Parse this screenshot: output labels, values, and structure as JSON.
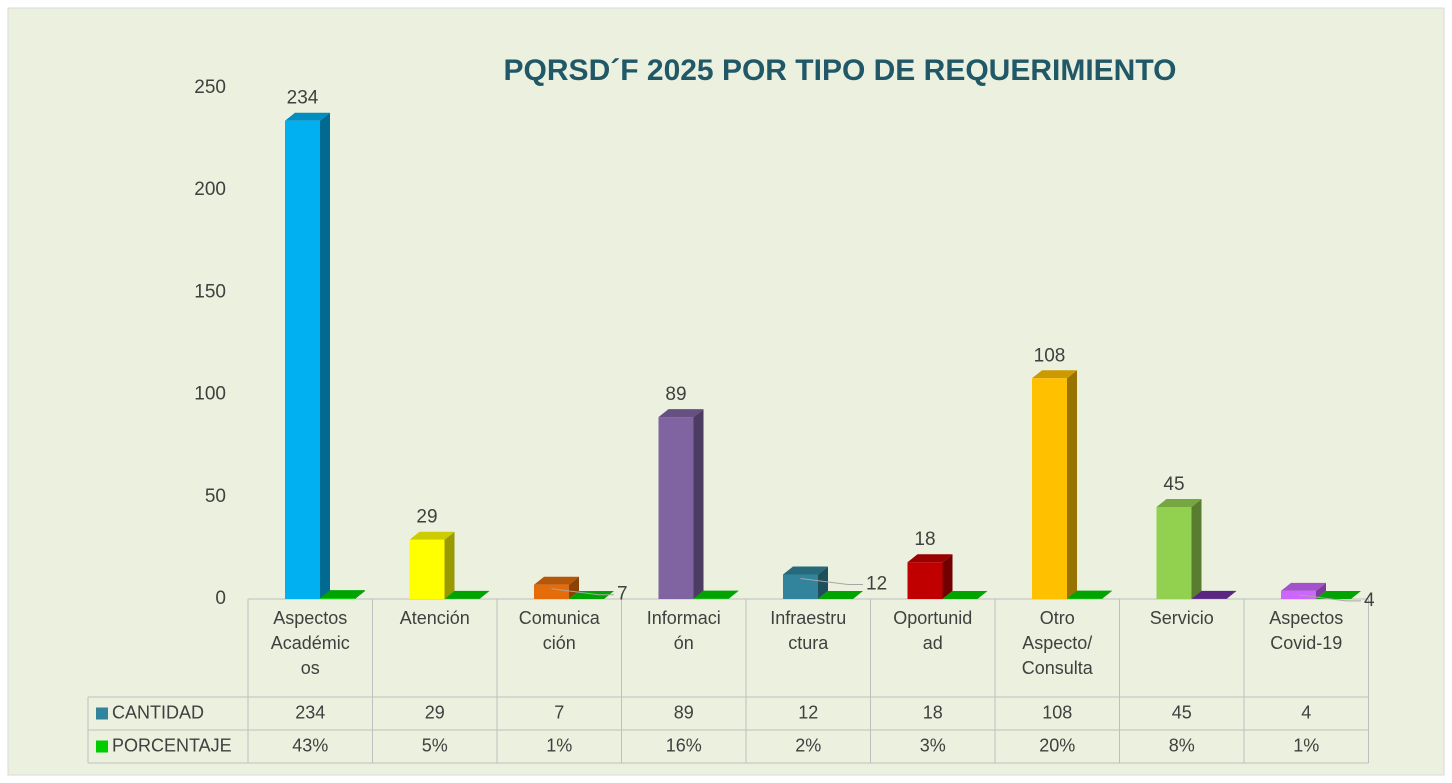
{
  "chart_data": {
    "type": "bar3d",
    "title": "PQRSD´F 2025 POR TIPO DE REQUERIMIENTO",
    "categories": [
      "Aspectos Académicos",
      "Atención",
      "Comunicación",
      "Información",
      "Infraestructura",
      "Oportunidad",
      "Otro Aspecto/ Consulta",
      "Servicio",
      "Aspectos Covid-19"
    ],
    "series": [
      {
        "name": "CANTIDAD",
        "color": "#31849b",
        "colors": [
          "#00b0f0",
          "#ffff00",
          "#e46c0a",
          "#8064a2",
          "#31849b",
          "#c00000",
          "#ffc000",
          "#92d050",
          "#cc66ff"
        ],
        "values": [
          234,
          29,
          7,
          89,
          12,
          18,
          108,
          45,
          4
        ]
      },
      {
        "name": "PORCENTAJE",
        "color": "#00cc00",
        "colors": [
          "#00cc00",
          "#00cc00",
          "#00cc00",
          "#00cc00",
          "#00cc00",
          "#00cc00",
          "#00cc00",
          "#7030a0",
          "#00cc00"
        ],
        "values": [
          0.43,
          0.05,
          0.01,
          0.16,
          0.02,
          0.03,
          0.2,
          0.08,
          0.01
        ],
        "value_labels": [
          "43%",
          "5%",
          "1%",
          "16%",
          "2%",
          "3%",
          "20%",
          "8%",
          "1%"
        ]
      }
    ],
    "ylim": [
      0,
      250
    ],
    "yticks": [
      0,
      50,
      100,
      150,
      200,
      250
    ],
    "grid": false
  }
}
